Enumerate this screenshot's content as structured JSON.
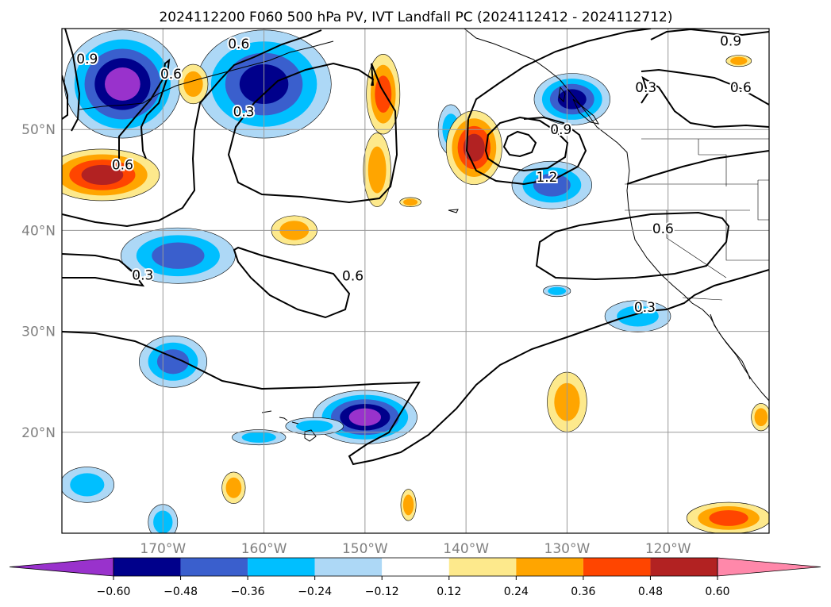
{
  "title": "2024112200 F060 500 hPa PV, IVT Landfall PC (2024112412 - 2024112712)",
  "map": {
    "lon_range": [
      -180,
      -110
    ],
    "lat_range": [
      10,
      60
    ],
    "lon_ticks": [
      {
        "lon": -170,
        "label": "170°W"
      },
      {
        "lon": -160,
        "label": "160°W"
      },
      {
        "lon": -150,
        "label": "150°W"
      },
      {
        "lon": -140,
        "label": "140°W"
      },
      {
        "lon": -130,
        "label": "130°W"
      },
      {
        "lon": -120,
        "label": "120°W"
      }
    ],
    "lat_ticks": [
      {
        "lat": 20,
        "label": "20°N"
      },
      {
        "lat": 30,
        "label": "30°N"
      },
      {
        "lat": 40,
        "label": "40°N"
      },
      {
        "lat": 50,
        "label": "50°N"
      }
    ],
    "grid": true
  },
  "colorbar": {
    "orientation": "horizontal",
    "extend": "both",
    "colors": [
      "#9932cc",
      "#00008b",
      "#3a5fcd",
      "#00bfff",
      "#add8f6",
      "#ffffff",
      "#fde98c",
      "#ffa500",
      "#ff4500",
      "#b22222",
      "#ff88aa"
    ],
    "levels": [
      -0.6,
      -0.48,
      -0.36,
      -0.24,
      -0.12,
      0.12,
      0.24,
      0.36,
      0.48,
      0.6
    ],
    "tick_labels": [
      "−0.60",
      "−0.48",
      "−0.36",
      "−0.24",
      "−0.12",
      "0.12",
      "0.24",
      "0.36",
      "0.48",
      "0.60"
    ]
  },
  "contour_labels": [
    {
      "text": "0.9",
      "lon": -177.5,
      "lat": 57
    },
    {
      "text": "0.6",
      "lon": -174,
      "lat": 46.5
    },
    {
      "text": "0.6",
      "lon": -169.2,
      "lat": 55.5
    },
    {
      "text": "0.6",
      "lon": -162.5,
      "lat": 58.5
    },
    {
      "text": "0.3",
      "lon": -162,
      "lat": 51.8
    },
    {
      "text": "0.3",
      "lon": -172,
      "lat": 35.6
    },
    {
      "text": "0.6",
      "lon": -151.2,
      "lat": 35.5
    },
    {
      "text": "0.9",
      "lon": -130.6,
      "lat": 50
    },
    {
      "text": "1.2",
      "lon": -132,
      "lat": 45.3
    },
    {
      "text": "0.9",
      "lon": -113.8,
      "lat": 58.8
    },
    {
      "text": "0.3",
      "lon": -122.2,
      "lat": 54.2
    },
    {
      "text": "0.6",
      "lon": -112.8,
      "lat": 54.2
    },
    {
      "text": "0.6",
      "lon": -120.5,
      "lat": 40.2
    },
    {
      "text": "0.3",
      "lon": -122.3,
      "lat": 32.4
    }
  ],
  "shaded_regions": [
    {
      "lon": -174,
      "lat": 54.5,
      "rlon": 5.6,
      "rlat": 5.2,
      "pv": -0.6
    },
    {
      "lon": -160,
      "lat": 54.5,
      "rlon": 6.5,
      "rlat": 5.2,
      "pv": -0.48
    },
    {
      "lon": -129.5,
      "lat": 53,
      "rlon": 3.6,
      "rlat": 2.4,
      "pv": -0.48
    },
    {
      "lon": -131.5,
      "lat": 44.5,
      "rlon": 3.8,
      "rlat": 2.2,
      "pv": -0.36
    },
    {
      "lon": -141.5,
      "lat": 50,
      "rlon": 1.1,
      "rlat": 2.3,
      "pv": -0.24
    },
    {
      "lon": -168.5,
      "lat": 37.5,
      "rlon": 5.5,
      "rlat": 2.6,
      "pv": -0.36
    },
    {
      "lon": -169,
      "lat": 27,
      "rlon": 3.2,
      "rlat": 2.4,
      "pv": -0.36
    },
    {
      "lon": -150,
      "lat": 21.5,
      "rlon": 5.0,
      "rlat": 2.5,
      "pv": -0.6
    },
    {
      "lon": -155,
      "lat": 20.6,
      "rlon": 2.7,
      "rlat": 0.7,
      "pv": -0.24
    },
    {
      "lon": -160.5,
      "lat": 19.5,
      "rlon": 2.5,
      "rlat": 0.6,
      "pv": -0.24
    },
    {
      "lon": -123,
      "lat": 31.5,
      "rlon": 3.1,
      "rlat": 1.4,
      "pv": -0.24
    },
    {
      "lon": -131,
      "lat": 34,
      "rlon": 1.2,
      "rlat": 0.4,
      "pv": -0.24
    },
    {
      "lon": -177.5,
      "lat": 14.8,
      "rlon": 2.5,
      "rlat": 1.6,
      "pv": -0.24
    },
    {
      "lon": -170,
      "lat": 11.1,
      "rlon": 1.3,
      "rlat": 1.6,
      "pv": -0.24
    },
    {
      "lon": -139.2,
      "lat": 48.2,
      "rlon": 2.6,
      "rlat": 3.5,
      "pv": 0.48
    },
    {
      "lon": -176,
      "lat": 45.5,
      "rlon": 5.5,
      "rlat": 2.4,
      "pv": 0.48
    },
    {
      "lon": -148.2,
      "lat": 53.5,
      "rlon": 1.5,
      "rlat": 3.8,
      "pv": 0.36
    },
    {
      "lon": -148.8,
      "lat": 46,
      "rlon": 1.2,
      "rlat": 3.5,
      "pv": 0.24
    },
    {
      "lon": -167,
      "lat": 54.5,
      "rlon": 1.3,
      "rlat": 1.8,
      "pv": 0.24
    },
    {
      "lon": -157,
      "lat": 40,
      "rlon": 2.1,
      "rlat": 1.3,
      "pv": 0.24
    },
    {
      "lon": -130,
      "lat": 23,
      "rlon": 1.8,
      "rlat": 2.8,
      "pv": 0.24
    },
    {
      "lon": -114,
      "lat": 11.5,
      "rlon": 4.0,
      "rlat": 1.4,
      "pv": 0.36
    },
    {
      "lon": -110.8,
      "lat": 21.5,
      "rlon": 0.8,
      "rlat": 1.2,
      "pv": 0.24
    },
    {
      "lon": -163,
      "lat": 14.5,
      "rlon": 1.0,
      "rlat": 1.4,
      "pv": 0.24
    },
    {
      "lon": -145.7,
      "lat": 12.8,
      "rlon": 0.6,
      "rlat": 1.4,
      "pv": 0.24
    },
    {
      "lon": -145.5,
      "lat": 42.8,
      "rlon": 0.9,
      "rlat": 0.3,
      "pv": 0.24
    },
    {
      "lon": -113,
      "lat": 56.8,
      "rlon": 1.1,
      "rlat": 0.4,
      "pv": 0.24
    }
  ]
}
